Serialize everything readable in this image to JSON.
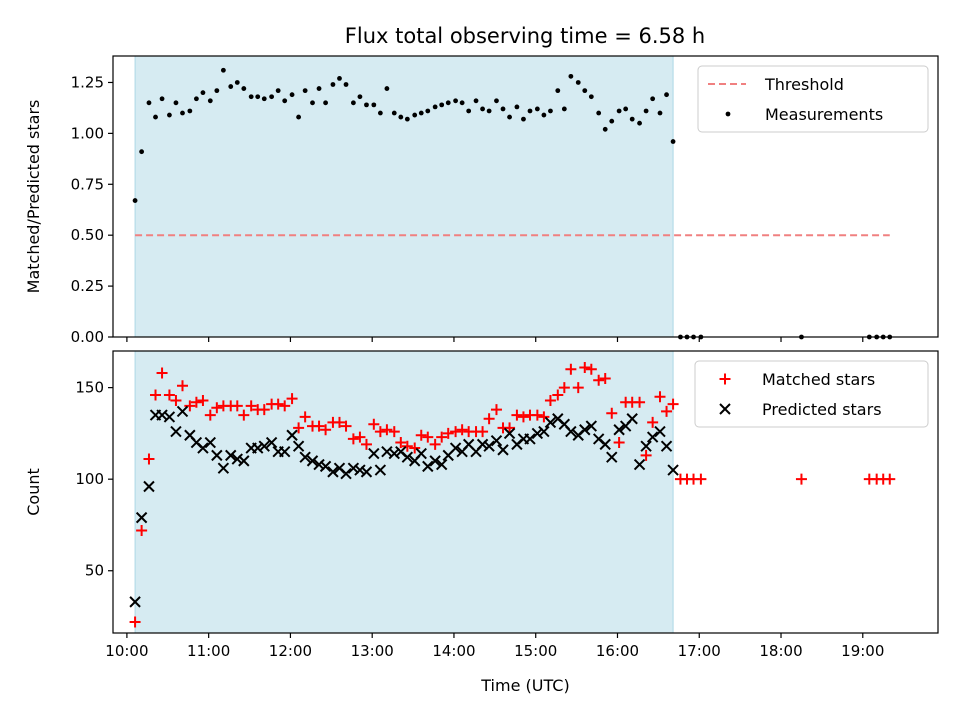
{
  "title": "Flux total observing time = 6.58 h",
  "colors": {
    "threshold": "#f08080",
    "measurement": "#000000",
    "matched": "#ff0000",
    "predicted": "#000000",
    "span": "#add8e6"
  },
  "chart_data": [
    {
      "type": "scatter",
      "ylabel": "Matched/Predicted stars",
      "xlim": [
        9.83,
        19.92
      ],
      "ylim": [
        0,
        1.38
      ],
      "x_ticks": [
        10,
        11,
        12,
        13,
        14,
        15,
        16,
        17,
        18,
        19
      ],
      "y_ticks": [
        0.0,
        0.25,
        0.5,
        0.75,
        1.0,
        1.25
      ],
      "y_tick_labels": [
        "0.00",
        "0.25",
        "0.50",
        "0.75",
        "1.00",
        "1.25"
      ],
      "shaded_span": [
        10.1,
        16.68
      ],
      "threshold": {
        "name": "Threshold",
        "y": 0.5,
        "x_range": [
          10.1,
          19.33
        ]
      },
      "legend": {
        "position": "top-right",
        "entries": [
          "Threshold",
          "Measurements"
        ]
      },
      "series": [
        {
          "name": "Measurements",
          "marker": "dot",
          "x": [
            10.1,
            10.18,
            10.27,
            10.35,
            10.43,
            10.52,
            10.6,
            10.68,
            10.77,
            10.85,
            10.93,
            11.02,
            11.1,
            11.18,
            11.27,
            11.35,
            11.43,
            11.52,
            11.6,
            11.68,
            11.77,
            11.85,
            11.93,
            12.02,
            12.1,
            12.18,
            12.27,
            12.35,
            12.43,
            12.52,
            12.6,
            12.68,
            12.77,
            12.85,
            12.93,
            13.02,
            13.1,
            13.18,
            13.27,
            13.35,
            13.43,
            13.52,
            13.6,
            13.68,
            13.77,
            13.85,
            13.93,
            14.02,
            14.1,
            14.18,
            14.27,
            14.35,
            14.43,
            14.52,
            14.6,
            14.68,
            14.77,
            14.85,
            14.93,
            15.02,
            15.1,
            15.18,
            15.27,
            15.35,
            15.43,
            15.52,
            15.6,
            15.68,
            15.77,
            15.85,
            15.93,
            16.02,
            16.1,
            16.18,
            16.27,
            16.35,
            16.43,
            16.52,
            16.6,
            16.68,
            16.77,
            16.85,
            16.93,
            17.02,
            18.25,
            19.08,
            19.17,
            19.25,
            19.33
          ],
          "y": [
            0.67,
            0.91,
            1.15,
            1.08,
            1.17,
            1.09,
            1.15,
            1.1,
            1.11,
            1.17,
            1.2,
            1.16,
            1.21,
            1.31,
            1.23,
            1.25,
            1.22,
            1.18,
            1.18,
            1.17,
            1.18,
            1.21,
            1.16,
            1.19,
            1.08,
            1.21,
            1.15,
            1.22,
            1.15,
            1.24,
            1.27,
            1.24,
            1.15,
            1.18,
            1.14,
            1.14,
            1.1,
            1.22,
            1.1,
            1.08,
            1.07,
            1.09,
            1.1,
            1.11,
            1.13,
            1.14,
            1.15,
            1.16,
            1.15,
            1.11,
            1.16,
            1.12,
            1.11,
            1.16,
            1.12,
            1.08,
            1.13,
            1.07,
            1.11,
            1.12,
            1.09,
            1.11,
            1.21,
            1.12,
            1.28,
            1.25,
            1.21,
            1.18,
            1.1,
            1.02,
            1.06,
            1.11,
            1.12,
            1.07,
            1.05,
            1.11,
            1.17,
            1.1,
            1.19,
            0.96,
            0.0,
            0.0,
            0.0,
            0.0,
            0.0,
            0.0,
            0.0,
            0.0,
            0.0
          ]
        }
      ]
    },
    {
      "type": "scatter",
      "xlabel": "Time (UTC)",
      "ylabel": "Count",
      "xlim": [
        9.83,
        19.92
      ],
      "ylim": [
        16,
        170
      ],
      "x_ticks": [
        10,
        11,
        12,
        13,
        14,
        15,
        16,
        17,
        18,
        19
      ],
      "x_tick_labels": [
        "10:00",
        "11:00",
        "12:00",
        "13:00",
        "14:00",
        "15:00",
        "16:00",
        "17:00",
        "18:00",
        "19:00"
      ],
      "y_ticks": [
        50,
        100,
        150
      ],
      "y_tick_labels": [
        "50",
        "100",
        "150"
      ],
      "shaded_span": [
        10.1,
        16.68
      ],
      "legend": {
        "position": "top-right",
        "entries": [
          "Matched stars",
          "Predicted stars"
        ]
      },
      "series": [
        {
          "name": "Matched stars",
          "marker": "plus",
          "x": [
            10.1,
            10.18,
            10.27,
            10.35,
            10.43,
            10.52,
            10.6,
            10.68,
            10.77,
            10.85,
            10.93,
            11.02,
            11.1,
            11.18,
            11.27,
            11.35,
            11.43,
            11.52,
            11.6,
            11.68,
            11.77,
            11.85,
            11.93,
            12.02,
            12.1,
            12.18,
            12.27,
            12.35,
            12.43,
            12.52,
            12.6,
            12.68,
            12.77,
            12.85,
            12.93,
            13.02,
            13.1,
            13.18,
            13.27,
            13.35,
            13.43,
            13.52,
            13.6,
            13.68,
            13.77,
            13.85,
            13.93,
            14.02,
            14.1,
            14.18,
            14.27,
            14.35,
            14.43,
            14.52,
            14.6,
            14.68,
            14.77,
            14.85,
            14.93,
            15.02,
            15.1,
            15.18,
            15.27,
            15.35,
            15.43,
            15.52,
            15.6,
            15.68,
            15.77,
            15.85,
            15.93,
            16.02,
            16.1,
            16.18,
            16.27,
            16.35,
            16.43,
            16.52,
            16.6,
            16.68,
            16.77,
            16.85,
            16.93,
            17.02,
            18.25,
            19.08,
            19.17,
            19.25,
            19.33
          ],
          "y": [
            22,
            72,
            111,
            146,
            158,
            146,
            143,
            151,
            140,
            142,
            143,
            135,
            139,
            140,
            140,
            140,
            135,
            140,
            138,
            138,
            141,
            141,
            140,
            144,
            128,
            134,
            129,
            129,
            127,
            131,
            131,
            129,
            122,
            123,
            119,
            130,
            126,
            127,
            126,
            120,
            118,
            117,
            124,
            123,
            119,
            123,
            125,
            126,
            127,
            126,
            126,
            126,
            133,
            138,
            128,
            128,
            135,
            134,
            135,
            135,
            134,
            143,
            146,
            150,
            160,
            150,
            161,
            160,
            154,
            155,
            136,
            120,
            142,
            142,
            142,
            113,
            131,
            145,
            137,
            141,
            100,
            100,
            100,
            100,
            100,
            100,
            100,
            100,
            100
          ]
        },
        {
          "name": "Predicted stars",
          "marker": "x",
          "x": [
            10.1,
            10.18,
            10.27,
            10.35,
            10.43,
            10.52,
            10.6,
            10.68,
            10.77,
            10.85,
            10.93,
            11.02,
            11.1,
            11.18,
            11.27,
            11.35,
            11.43,
            11.52,
            11.6,
            11.68,
            11.77,
            11.85,
            11.93,
            12.02,
            12.1,
            12.18,
            12.27,
            12.35,
            12.43,
            12.52,
            12.6,
            12.68,
            12.77,
            12.85,
            12.93,
            13.02,
            13.1,
            13.18,
            13.27,
            13.35,
            13.43,
            13.52,
            13.6,
            13.68,
            13.77,
            13.85,
            13.93,
            14.02,
            14.1,
            14.18,
            14.27,
            14.35,
            14.43,
            14.52,
            14.6,
            14.68,
            14.77,
            14.85,
            14.93,
            15.02,
            15.1,
            15.18,
            15.27,
            15.35,
            15.43,
            15.52,
            15.6,
            15.68,
            15.77,
            15.85,
            15.93,
            16.02,
            16.1,
            16.18,
            16.27,
            16.35,
            16.43,
            16.52,
            16.6,
            16.68
          ],
          "y": [
            33,
            79,
            96,
            135,
            135,
            134,
            126,
            137,
            124,
            120,
            117,
            120,
            113,
            106,
            113,
            111,
            110,
            117,
            117,
            118,
            120,
            115,
            115,
            124,
            118,
            112,
            110,
            108,
            107,
            104,
            106,
            103,
            106,
            105,
            104,
            114,
            105,
            115,
            114,
            115,
            112,
            110,
            114,
            107,
            110,
            108,
            113,
            117,
            115,
            119,
            115,
            119,
            118,
            121,
            116,
            125,
            119,
            122,
            122,
            125,
            126,
            131,
            133,
            130,
            126,
            124,
            127,
            129,
            122,
            119,
            112,
            127,
            129,
            133,
            108,
            118,
            123,
            126,
            118,
            105
          ]
        }
      ]
    }
  ]
}
